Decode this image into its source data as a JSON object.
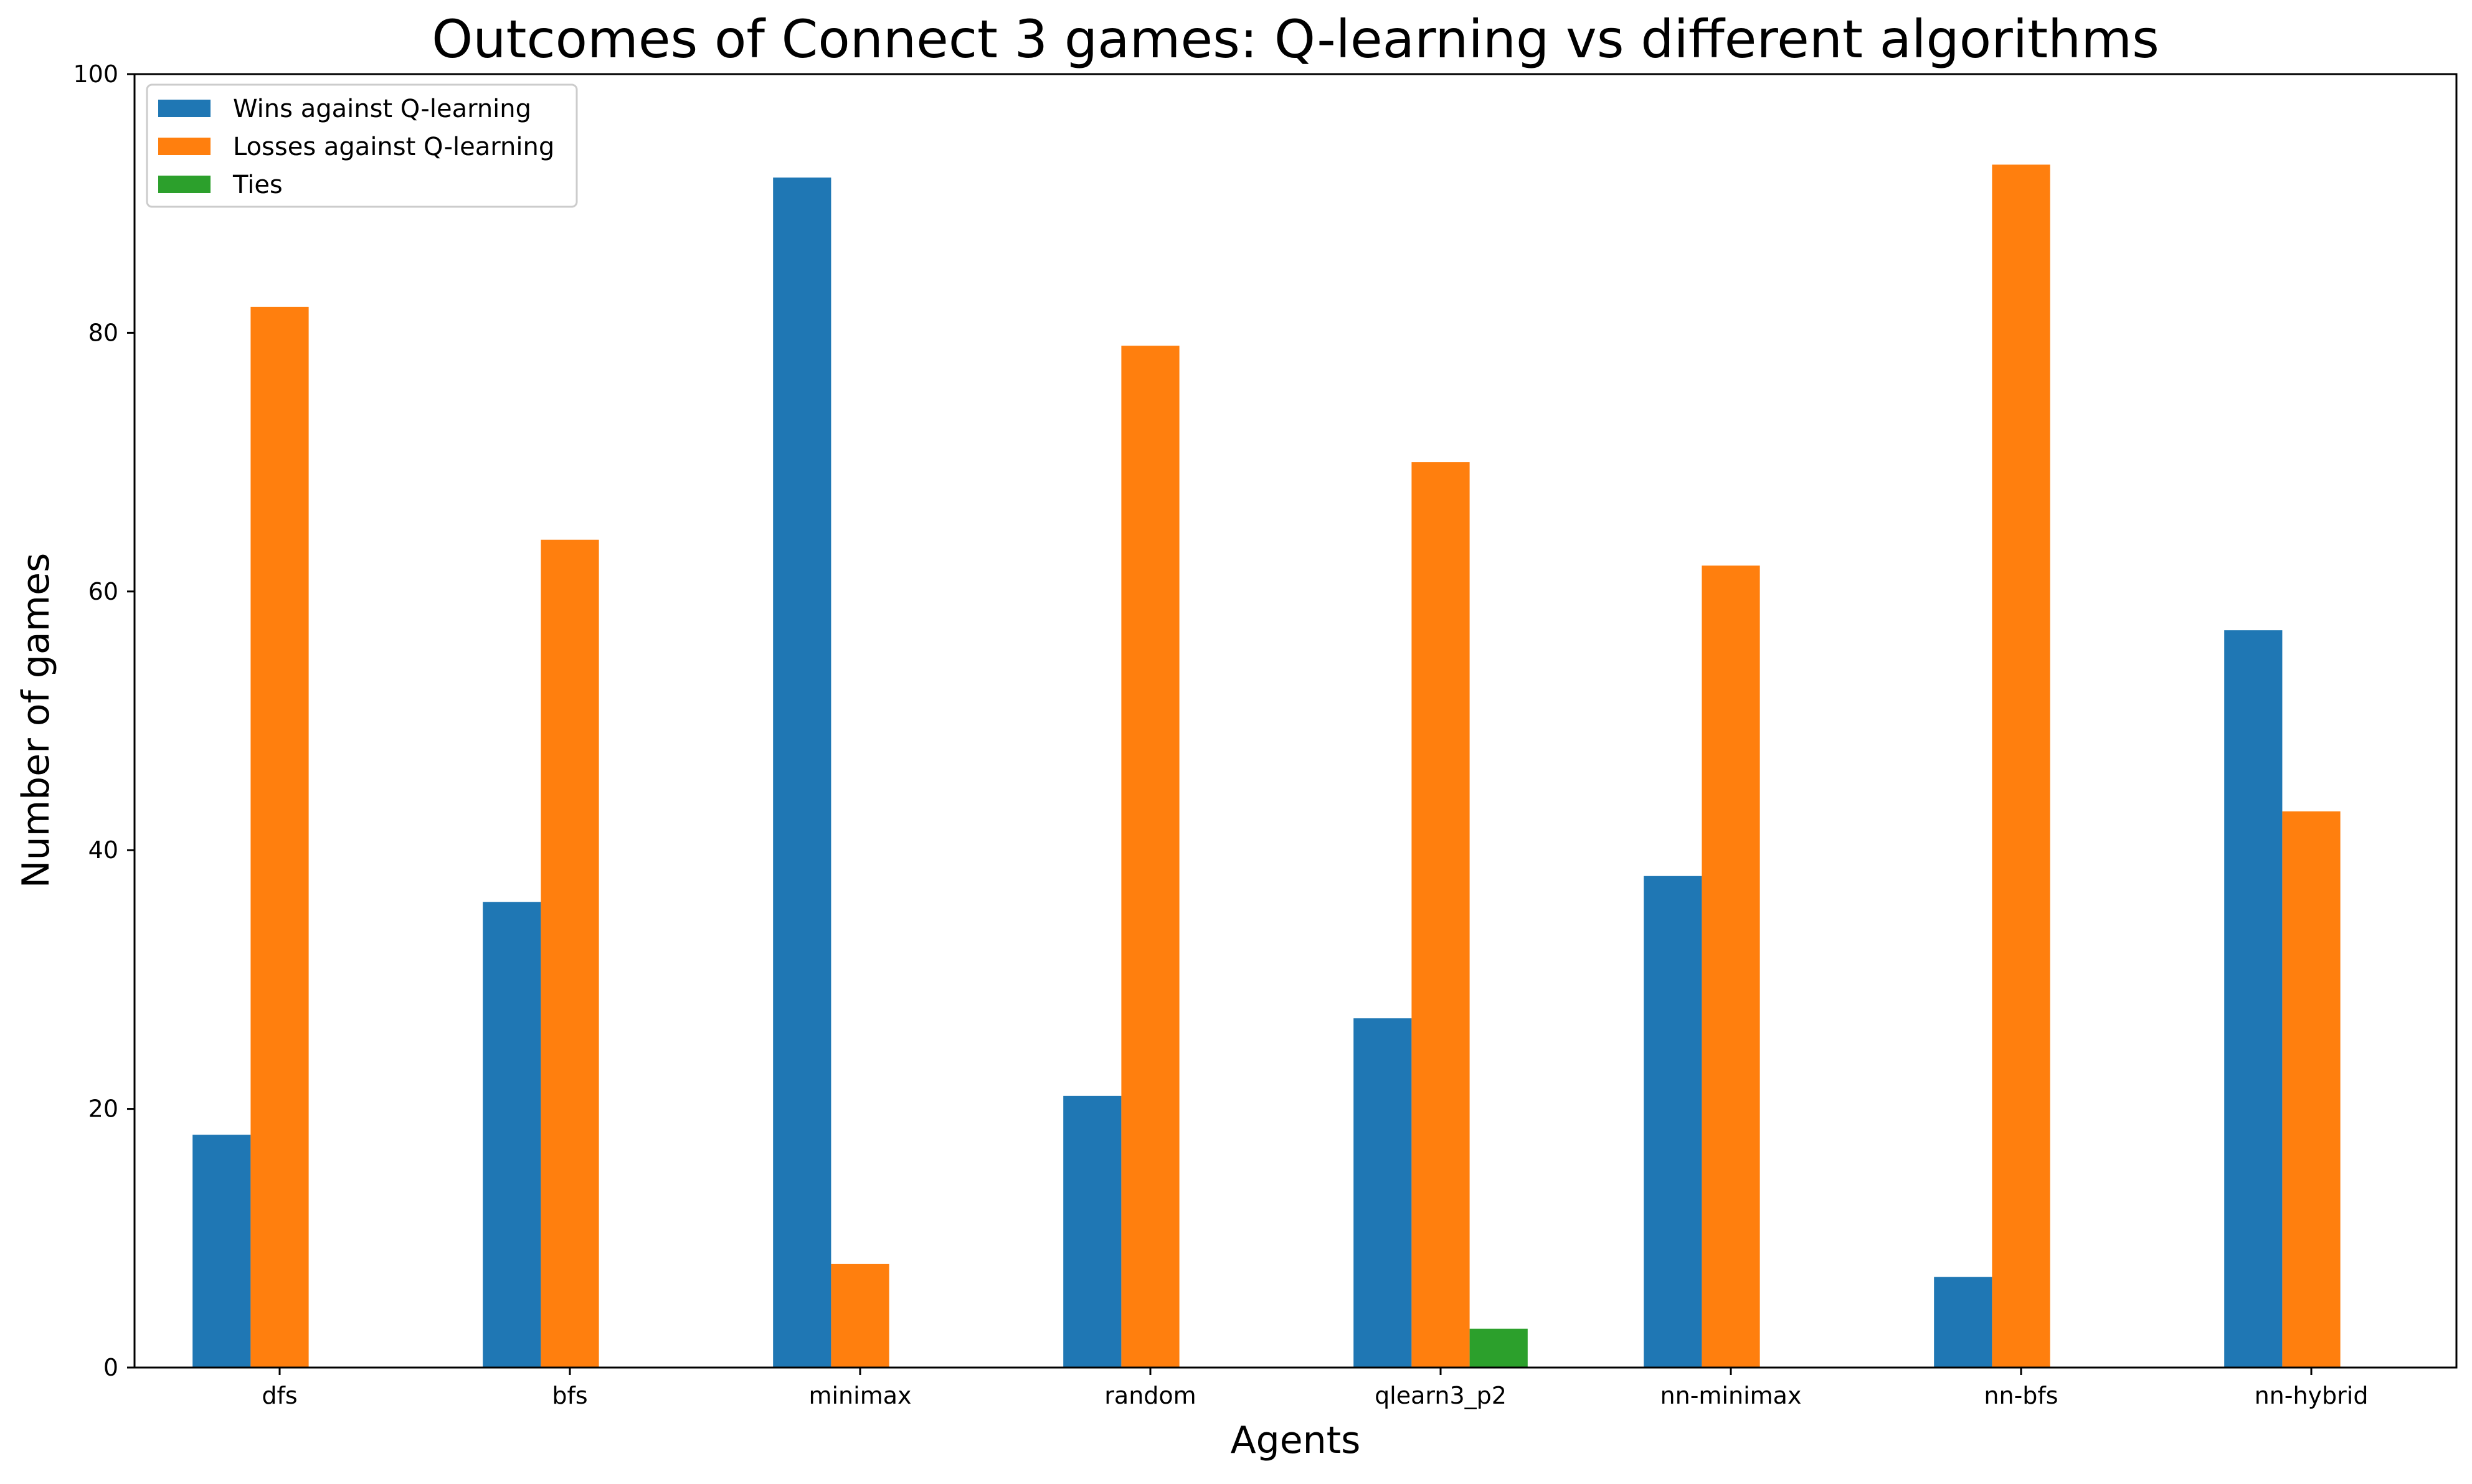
{
  "chart_data": {
    "type": "bar",
    "title": "Outcomes of Connect 3 games: Q-learning vs different algorithms",
    "xlabel": "Agents",
    "ylabel": "Number of games",
    "categories": [
      "dfs",
      "bfs",
      "minimax",
      "random",
      "qlearn3_p2",
      "nn-minimax",
      "nn-bfs",
      "nn-hybrid"
    ],
    "series": [
      {
        "name": "Wins against Q-learning",
        "color": "#1f77b4",
        "values": [
          18,
          36,
          92,
          21,
          27,
          38,
          7,
          57
        ]
      },
      {
        "name": "Losses against Q-learning",
        "color": "#ff7f0e",
        "values": [
          82,
          64,
          8,
          79,
          70,
          62,
          93,
          43
        ]
      },
      {
        "name": "Ties",
        "color": "#2ca02c",
        "values": [
          0,
          0,
          0,
          0,
          3,
          0,
          0,
          0
        ]
      }
    ],
    "ylim": [
      0,
      100
    ],
    "yticks": [
      0,
      20,
      40,
      60,
      80,
      100
    ],
    "grid": false,
    "legend_position": "top-left"
  }
}
